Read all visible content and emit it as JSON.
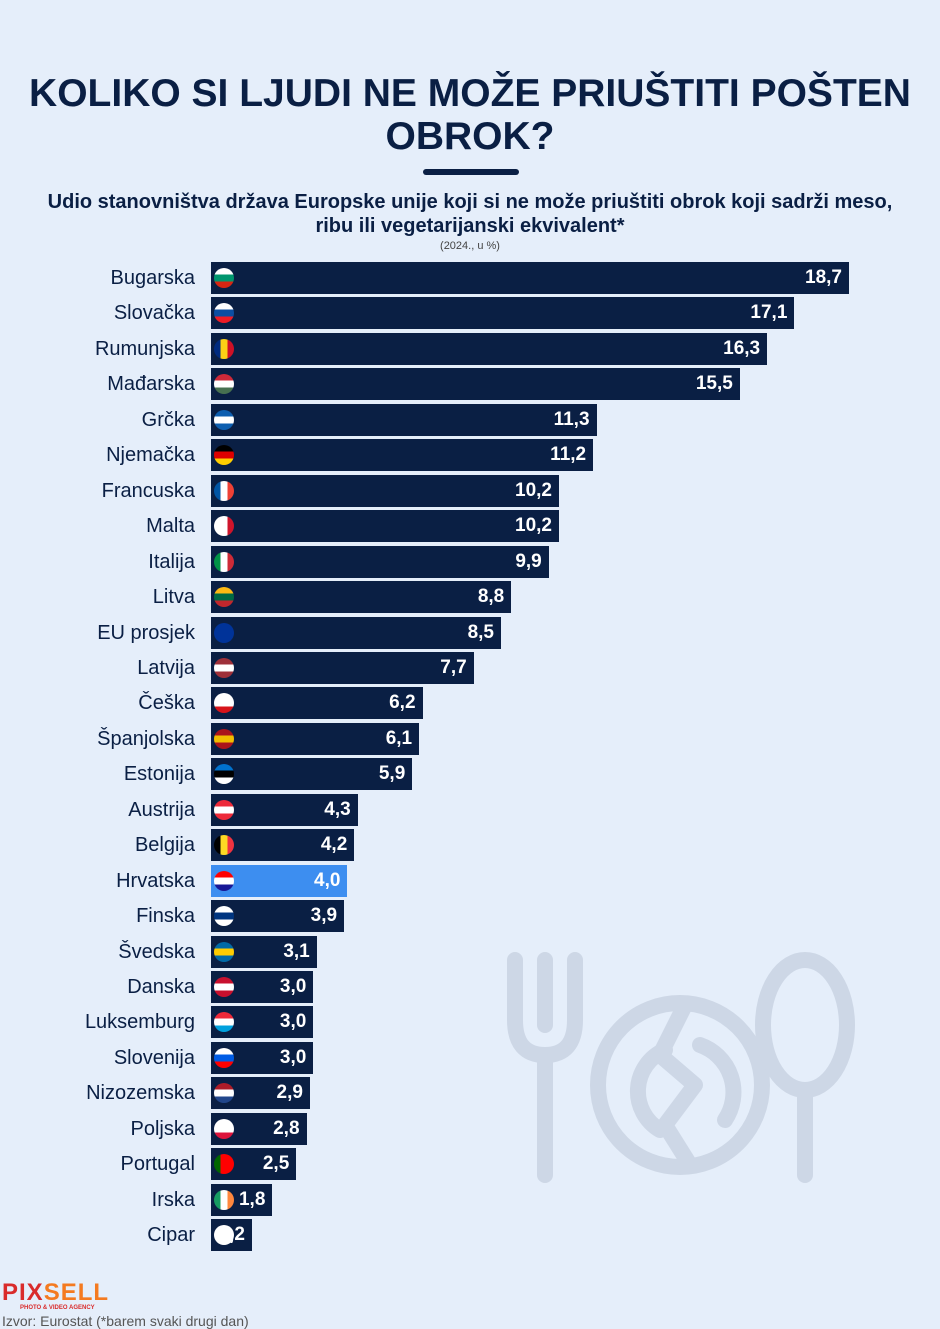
{
  "chart_data": {
    "type": "bar",
    "orientation": "horizontal",
    "title": "KOLIKO SI LJUDI NE MOŽE PRIUŠTITI POŠTEN OBROK?",
    "subtitle": "Udio stanovništva država Europske unije koji si ne može priuštiti obrok koji sadrži meso, ribu ili vegetarijanski ekvivalent*",
    "note": "(2024., u %)",
    "xlim": [
      0,
      18.7
    ],
    "highlight": "Hrvatska",
    "bar_color": "#0a1f44",
    "highlight_color": "#3d8ef0",
    "categories": [
      "Bugarska",
      "Slovačka",
      "Rumunjska",
      "Mađarska",
      "Grčka",
      "Njemačka",
      "Francuska",
      "Malta",
      "Italija",
      "Litva",
      "EU prosjek",
      "Latvija",
      "Češka",
      "Španjolska",
      "Estonija",
      "Austrija",
      "Belgija",
      "Hrvatska",
      "Finska",
      "Švedska",
      "Danska",
      "Luksemburg",
      "Slovenija",
      "Nizozemska",
      "Poljska",
      "Portugal",
      "Irska",
      "Cipar"
    ],
    "values": [
      18.7,
      17.1,
      16.3,
      15.5,
      11.3,
      11.2,
      10.2,
      10.2,
      9.9,
      8.8,
      8.5,
      7.7,
      6.2,
      6.1,
      5.9,
      4.3,
      4.2,
      4.0,
      3.9,
      3.1,
      3.0,
      3.0,
      3.0,
      2.9,
      2.8,
      2.5,
      1.8,
      1.2
    ],
    "value_labels": [
      "18,7",
      "17,1",
      "16,3",
      "15,5",
      "11,3",
      "11,2",
      "10,2",
      "10,2",
      "9,9",
      "8,8",
      "8,5",
      "7,7",
      "6,2",
      "6,1",
      "5,9",
      "4,3",
      "4,2",
      "4,0",
      "3,9",
      "3,1",
      "3,0",
      "3,0",
      "3,0",
      "2,9",
      "2,8",
      "2,5",
      "1,8",
      "1,2"
    ],
    "flags": [
      [
        "h",
        "#ffffff",
        "#00966e",
        "#d62612"
      ],
      [
        "h",
        "#ffffff",
        "#0b4ea2",
        "#ee1c25"
      ],
      [
        "v",
        "#002b7f",
        "#fcd116",
        "#ce1126"
      ],
      [
        "h",
        "#ce2939",
        "#ffffff",
        "#477050"
      ],
      [
        "h",
        "#0d5eaf",
        "#ffffff",
        "#0d5eaf"
      ],
      [
        "h",
        "#000000",
        "#dd0000",
        "#ffce00"
      ],
      [
        "v",
        "#0055a4",
        "#ffffff",
        "#ef4135"
      ],
      [
        "v",
        "#ffffff",
        "#ffffff",
        "#cf142b"
      ],
      [
        "v",
        "#009246",
        "#ffffff",
        "#ce2b37"
      ],
      [
        "h",
        "#fdb913",
        "#006a44",
        "#c1272d"
      ],
      [
        "h",
        "#003399",
        "#003399",
        "#003399"
      ],
      [
        "h",
        "#9e3039",
        "#ffffff",
        "#9e3039"
      ],
      [
        "h",
        "#ffffff",
        "#ffffff",
        "#d7141a"
      ],
      [
        "h",
        "#aa151b",
        "#f1bf00",
        "#aa151b"
      ],
      [
        "h",
        "#0072ce",
        "#000000",
        "#ffffff"
      ],
      [
        "h",
        "#ed2939",
        "#ffffff",
        "#ed2939"
      ],
      [
        "v",
        "#000000",
        "#fdda24",
        "#ef3340"
      ],
      [
        "h",
        "#ff0000",
        "#ffffff",
        "#171796"
      ],
      [
        "h",
        "#ffffff",
        "#003580",
        "#ffffff"
      ],
      [
        "h",
        "#006aa7",
        "#fecc00",
        "#006aa7"
      ],
      [
        "h",
        "#c8102e",
        "#ffffff",
        "#c8102e"
      ],
      [
        "h",
        "#ed2939",
        "#ffffff",
        "#00a1de"
      ],
      [
        "h",
        "#ffffff",
        "#005ce5",
        "#ff0000"
      ],
      [
        "h",
        "#ae1c28",
        "#ffffff",
        "#21468b"
      ],
      [
        "h",
        "#ffffff",
        "#ffffff",
        "#dc143c"
      ],
      [
        "v",
        "#006600",
        "#ff0000",
        "#ff0000"
      ],
      [
        "v",
        "#169b62",
        "#ffffff",
        "#ff883e"
      ],
      [
        "h",
        "#ffffff",
        "#ffffff",
        "#ffffff"
      ]
    ]
  },
  "footer": {
    "logo": "PIXSELL",
    "logo_a": "PIX",
    "logo_b": "SELL",
    "agency": "PHOTO & VIDEO AGENCY",
    "source": "Izvor: Eurostat (*barem svaki drugi dan)"
  }
}
